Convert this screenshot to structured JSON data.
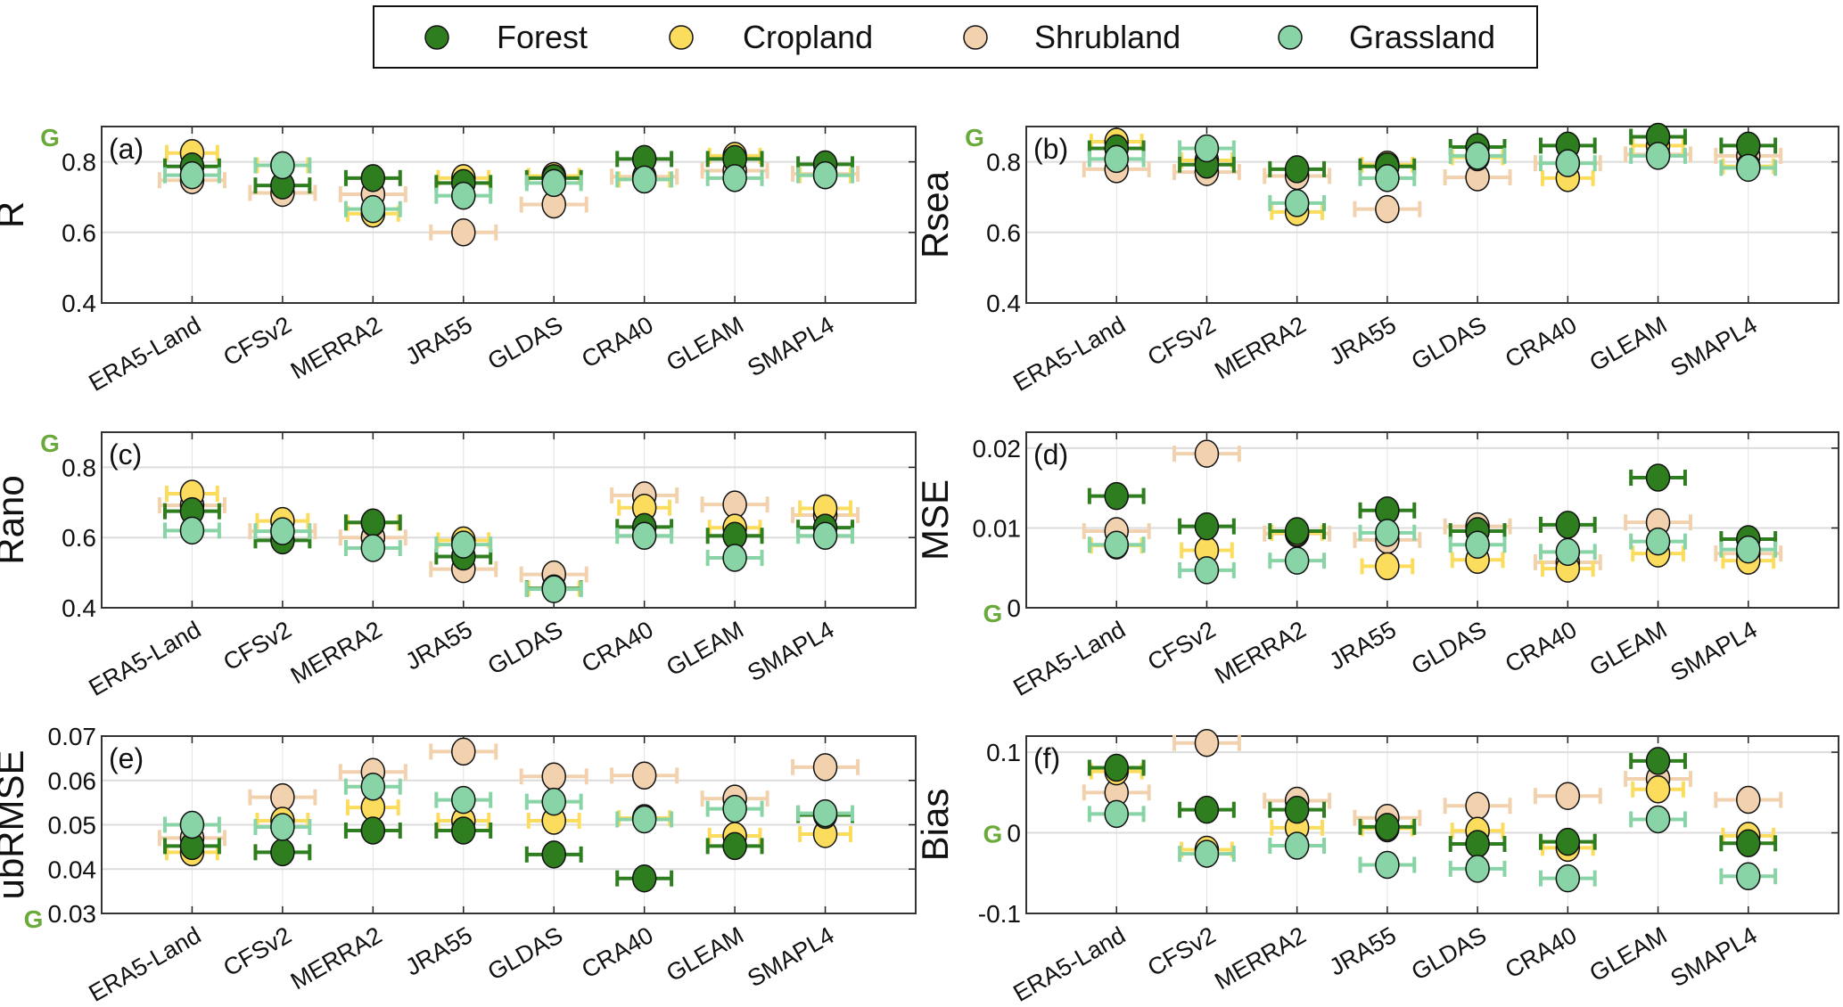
{
  "legend": {
    "placement": "top-center",
    "entries": [
      {
        "label": "Forest",
        "color": "#2e7d1e"
      },
      {
        "label": "Cropland",
        "color": "#fcdc5c"
      },
      {
        "label": "Shrubland",
        "color": "#f2d2ae"
      },
      {
        "label": "Grassland",
        "color": "#88d4a6"
      }
    ]
  },
  "g_color": "#6aaa3a",
  "chart_data": [
    {
      "type": "scatter",
      "panel_label": "(a)",
      "ylabel": "R",
      "ylim": [
        0.4,
        0.9
      ],
      "yticks": [
        "0.4",
        "0.6",
        "0.8"
      ],
      "ytick_values": [
        0.4,
        0.6,
        0.8
      ],
      "g_marker": {
        "label": "G",
        "at": "top"
      },
      "grid": true,
      "categories": [
        "ERA5-Land",
        "CFSv2",
        "MERRA2",
        "JRA55",
        "GLDAS",
        "CRA40",
        "GLEAM",
        "SMAPL4"
      ],
      "series": [
        {
          "name": "Forest",
          "values": [
            0.787,
            0.733,
            0.754,
            0.74,
            0.754,
            0.808,
            0.808,
            0.793
          ]
        },
        {
          "name": "Cropland",
          "values": [
            0.825,
            0.79,
            0.653,
            0.754,
            0.76,
            0.75,
            0.817,
            0.762
          ]
        },
        {
          "name": "Shrubland",
          "values": [
            0.748,
            0.712,
            0.708,
            0.6,
            0.679,
            0.758,
            0.775,
            0.766
          ]
        },
        {
          "name": "Grassland",
          "values": [
            0.762,
            0.79,
            0.666,
            0.704,
            0.74,
            0.75,
            0.754,
            0.762
          ]
        }
      ]
    },
    {
      "type": "scatter",
      "panel_label": "(b)",
      "ylabel": "Rsea",
      "ylim": [
        0.4,
        0.9
      ],
      "yticks": [
        "0.4",
        "0.6",
        "0.8"
      ],
      "ytick_values": [
        0.4,
        0.6,
        0.8
      ],
      "g_marker": {
        "label": "G",
        "at": "top"
      },
      "grid": true,
      "categories": [
        "ERA5-Land",
        "CFSv2",
        "MERRA2",
        "JRA55",
        "GLDAS",
        "CRA40",
        "GLEAM",
        "SMAPL4"
      ],
      "series": [
        {
          "name": "Forest",
          "values": [
            0.838,
            0.792,
            0.779,
            0.787,
            0.842,
            0.846,
            0.871,
            0.846
          ]
        },
        {
          "name": "Cropland",
          "values": [
            0.857,
            0.804,
            0.658,
            0.792,
            0.813,
            0.754,
            0.846,
            0.787
          ]
        },
        {
          "name": "Shrubland",
          "values": [
            0.779,
            0.771,
            0.76,
            0.666,
            0.756,
            0.796,
            0.821,
            0.817
          ]
        },
        {
          "name": "Grassland",
          "values": [
            0.808,
            0.838,
            0.683,
            0.754,
            0.817,
            0.796,
            0.817,
            0.783
          ]
        }
      ]
    },
    {
      "type": "scatter",
      "panel_label": "(c)",
      "ylabel": "Rano",
      "ylim": [
        0.4,
        0.9
      ],
      "yticks": [
        "0.4",
        "0.6",
        "0.8"
      ],
      "ytick_values": [
        0.4,
        0.6,
        0.8
      ],
      "g_marker": {
        "label": "G",
        "at": "top"
      },
      "grid": true,
      "categories": [
        "ERA5-Land",
        "CFSv2",
        "MERRA2",
        "JRA55",
        "GLDAS",
        "CRA40",
        "GLEAM",
        "SMAPL4"
      ],
      "series": [
        {
          "name": "Forest",
          "values": [
            0.675,
            0.592,
            0.643,
            0.546,
            0.455,
            0.63,
            0.605,
            0.628
          ]
        },
        {
          "name": "Cropland",
          "values": [
            0.725,
            0.647,
            0.642,
            0.592,
            0.455,
            0.685,
            0.628,
            0.683
          ]
        },
        {
          "name": "Shrubland",
          "values": [
            0.692,
            0.618,
            0.6,
            0.51,
            0.495,
            0.72,
            0.694,
            0.664
          ]
        },
        {
          "name": "Grassland",
          "values": [
            0.62,
            0.618,
            0.57,
            0.58,
            0.453,
            0.605,
            0.542,
            0.605
          ]
        }
      ]
    },
    {
      "type": "scatter",
      "panel_label": "(d)",
      "ylabel": "MSE",
      "ylim": [
        0,
        0.022
      ],
      "yticks": [
        "0",
        "0.01",
        "0.02"
      ],
      "ytick_values": [
        0,
        0.01,
        0.02
      ],
      "g_marker": {
        "label": "G",
        "at": "bottom"
      },
      "grid": true,
      "categories": [
        "ERA5-Land",
        "CFSv2",
        "MERRA2",
        "JRA55",
        "GLDAS",
        "CRA40",
        "GLEAM",
        "SMAPL4"
      ],
      "series": [
        {
          "name": "Forest",
          "values": [
            0.014,
            0.0102,
            0.0096,
            0.0122,
            0.0096,
            0.0104,
            0.0163,
            0.0086
          ]
        },
        {
          "name": "Cropland",
          "values": [
            0.0078,
            0.0072,
            0.0094,
            0.0052,
            0.006,
            0.0049,
            0.0068,
            0.0059
          ]
        },
        {
          "name": "Shrubland",
          "values": [
            0.0096,
            0.0193,
            0.0093,
            0.0085,
            0.0102,
            0.0057,
            0.0107,
            0.0068
          ]
        },
        {
          "name": "Grassland",
          "values": [
            0.0079,
            0.0047,
            0.0059,
            0.0094,
            0.0079,
            0.007,
            0.0083,
            0.0073
          ]
        }
      ]
    },
    {
      "type": "scatter",
      "panel_label": "(e)",
      "ylabel": "ubRMSE",
      "ylim": [
        0.03,
        0.07
      ],
      "yticks": [
        "0.03",
        "0.04",
        "0.05",
        "0.06",
        "0.07"
      ],
      "ytick_values": [
        0.03,
        0.04,
        0.05,
        0.06,
        0.07
      ],
      "g_marker": {
        "label": "G",
        "at": "bottom"
      },
      "grid": true,
      "categories": [
        "ERA5-Land",
        "CFSv2",
        "MERRA2",
        "JRA55",
        "GLDAS",
        "CRA40",
        "GLEAM",
        "SMAPL4"
      ],
      "series": [
        {
          "name": "Forest",
          "values": [
            0.0452,
            0.0438,
            0.0487,
            0.0487,
            0.0433,
            0.0379,
            0.0452,
            0.0522
          ]
        },
        {
          "name": "Cropland",
          "values": [
            0.0438,
            0.0509,
            0.0539,
            0.0509,
            0.0509,
            0.0515,
            0.0475,
            0.0479
          ]
        },
        {
          "name": "Shrubland",
          "values": [
            0.047,
            0.0562,
            0.0619,
            0.0665,
            0.0609,
            0.0611,
            0.0559,
            0.063
          ]
        },
        {
          "name": "Grassland",
          "values": [
            0.05,
            0.0495,
            0.0586,
            0.0556,
            0.0552,
            0.0512,
            0.0536,
            0.0526
          ]
        }
      ]
    },
    {
      "type": "scatter",
      "panel_label": "(f)",
      "ylabel": "Bias",
      "ylim": [
        -0.1,
        0.12
      ],
      "yticks": [
        "-0.1",
        "0",
        "0.1"
      ],
      "ytick_values": [
        -0.1,
        0,
        0.1
      ],
      "g_marker": {
        "label": "G",
        "at": 0
      },
      "grid": true,
      "categories": [
        "ERA5-Land",
        "CFSv2",
        "MERRA2",
        "JRA55",
        "GLDAS",
        "CRA40",
        "GLEAM",
        "SMAPL4"
      ],
      "series": [
        {
          "name": "Forest",
          "values": [
            0.0807,
            0.0286,
            0.0286,
            0.0074,
            -0.0138,
            -0.0112,
            0.0892,
            -0.013
          ]
        },
        {
          "name": "Cropland",
          "values": [
            0.0762,
            -0.021,
            0.0063,
            0.0056,
            0.0026,
            -0.0186,
            0.0539,
            -0.0037
          ]
        },
        {
          "name": "Shrubland",
          "values": [
            0.05,
            0.1115,
            0.0398,
            0.0186,
            0.0335,
            0.0457,
            0.0669,
            0.0409
          ]
        },
        {
          "name": "Grassland",
          "values": [
            0.0234,
            -0.026,
            -0.016,
            -0.0398,
            -0.0446,
            -0.0565,
            0.0167,
            -0.0539
          ]
        }
      ]
    }
  ]
}
